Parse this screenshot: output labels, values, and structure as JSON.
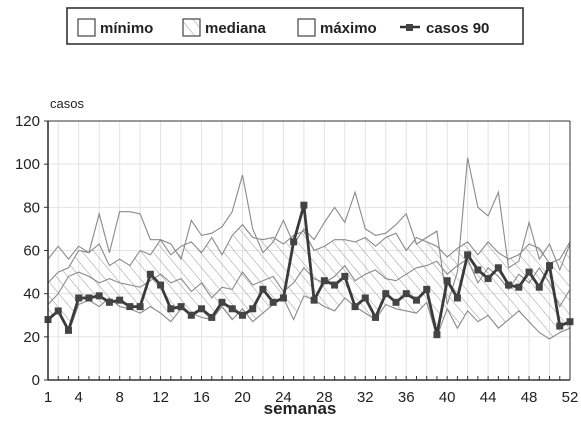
{
  "chart_data": {
    "type": "line",
    "title": "",
    "xlabel": "semanas",
    "ylabel": "casos",
    "xlim": [
      1,
      52
    ],
    "ylim": [
      0,
      120
    ],
    "yticks": [
      0,
      20,
      40,
      60,
      80,
      100,
      120
    ],
    "xticks": [
      1,
      4,
      8,
      12,
      16,
      20,
      24,
      28,
      32,
      36,
      40,
      44,
      48,
      52
    ],
    "grid": true,
    "legend": "top-center",
    "x": [
      1,
      2,
      3,
      4,
      5,
      6,
      7,
      8,
      9,
      10,
      11,
      12,
      13,
      14,
      15,
      16,
      17,
      18,
      19,
      20,
      21,
      22,
      23,
      24,
      25,
      26,
      27,
      28,
      29,
      30,
      31,
      32,
      33,
      34,
      35,
      36,
      37,
      38,
      39,
      40,
      41,
      42,
      43,
      44,
      45,
      46,
      47,
      48,
      49,
      50,
      51,
      52
    ],
    "series": [
      {
        "name": "mínimo",
        "kind": "band-lower",
        "values": [
          27,
          32,
          22,
          35,
          37,
          34,
          38,
          34,
          33,
          31,
          34,
          31,
          27,
          33,
          31,
          29,
          28,
          34,
          28,
          33,
          27,
          31,
          35,
          38,
          28,
          39,
          37,
          34,
          32,
          38,
          34,
          31,
          28,
          35,
          33,
          32,
          31,
          36,
          20,
          33,
          24,
          32,
          27,
          30,
          24,
          28,
          32,
          27,
          22,
          19,
          22,
          24
        ]
      },
      {
        "name": "mediana",
        "kind": "band-middle",
        "values": [
          35,
          40,
          48,
          50,
          48,
          45,
          47,
          45,
          44,
          43,
          46,
          49,
          45,
          47,
          41,
          45,
          38,
          43,
          42,
          50,
          44,
          46,
          48,
          41,
          45,
          52,
          47,
          45,
          48,
          53,
          46,
          49,
          51,
          47,
          46,
          49,
          52,
          53,
          55,
          49,
          53,
          56,
          45,
          52,
          48,
          42,
          49,
          45,
          52,
          45,
          34,
          42
        ]
      },
      {
        "name": "máximo",
        "kind": "band-upper",
        "values": [
          45,
          50,
          52,
          60,
          59,
          63,
          53,
          56,
          53,
          60,
          58,
          65,
          58,
          62,
          64,
          59,
          66,
          58,
          67,
          72,
          66,
          65,
          66,
          63,
          67,
          69,
          60,
          62,
          65,
          65,
          64,
          66,
          62,
          66,
          68,
          60,
          66,
          64,
          62,
          57,
          61,
          64,
          58,
          64,
          59,
          56,
          58,
          63,
          61,
          54,
          56,
          64
        ]
      },
      {
        "name": "máximo_envelope",
        "kind": "band-upper-outline",
        "values": [
          56,
          62,
          56,
          62,
          59,
          77,
          59,
          78,
          78,
          77,
          65,
          65,
          63,
          56,
          74,
          67,
          68,
          71,
          78,
          95,
          70,
          59,
          64,
          74,
          63,
          70,
          65,
          73,
          80,
          73,
          87,
          70,
          67,
          68,
          72,
          77,
          63,
          66,
          69,
          35,
          50,
          103,
          80,
          76,
          87,
          52,
          55,
          73,
          56,
          63,
          51,
          63
        ]
      },
      {
        "name": "casos 90",
        "kind": "line",
        "values": [
          28,
          32,
          23,
          38,
          38,
          39,
          36,
          37,
          34,
          34,
          49,
          44,
          33,
          34,
          30,
          33,
          29,
          36,
          33,
          30,
          33,
          42,
          36,
          38,
          64,
          81,
          37,
          46,
          44,
          48,
          34,
          38,
          29,
          40,
          36,
          40,
          37,
          42,
          21,
          46,
          38,
          58,
          51,
          47,
          52,
          44,
          43,
          50,
          43,
          53,
          25,
          27
        ]
      }
    ]
  },
  "legend": {
    "items": [
      {
        "label": "mínimo",
        "swatch": "plain"
      },
      {
        "label": "mediana",
        "swatch": "hatch"
      },
      {
        "label": "máximo",
        "swatch": "plain"
      },
      {
        "label": "casos 90",
        "swatch": "line-marker"
      }
    ]
  },
  "colors": {
    "series_line": "#3a3a3a",
    "band_line": "#8a8a8a",
    "grid": "#e3e3e3",
    "axis": "#333333",
    "hatch": "#9a9a9a"
  }
}
